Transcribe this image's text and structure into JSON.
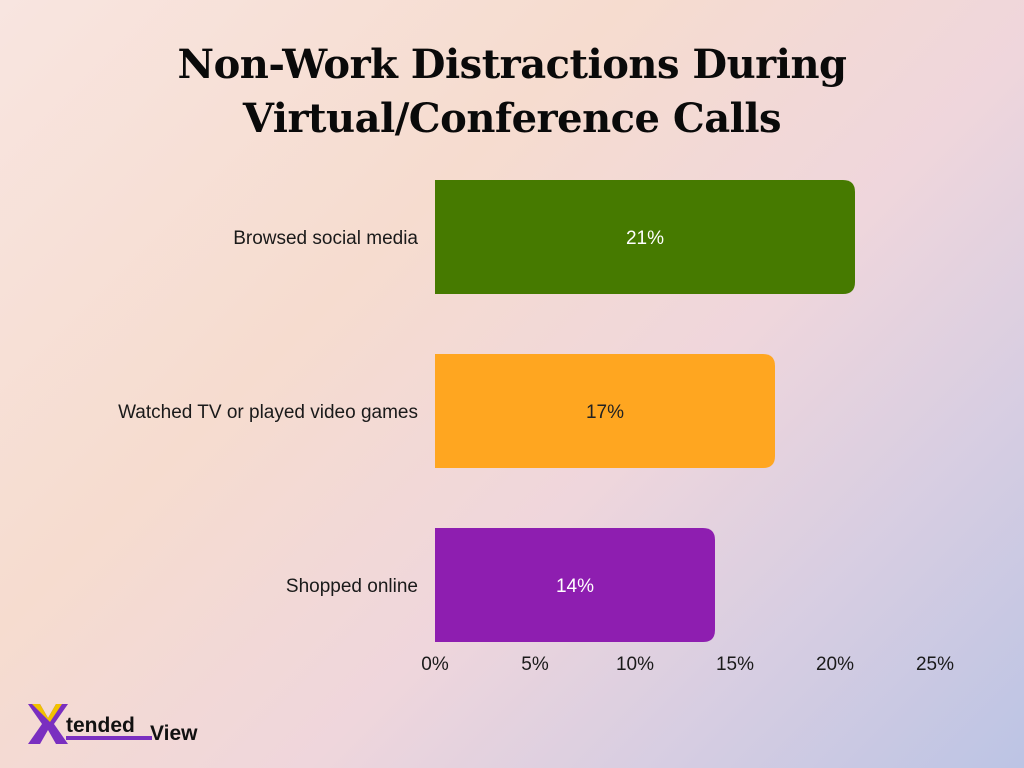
{
  "title_lines": [
    "Non-Work Distractions During",
    "Virtual/Conference Calls"
  ],
  "brand": {
    "mark": "X",
    "part1": "tended",
    "part2": "View",
    "accent": "#8a35c9",
    "yellow": "#f2c200"
  },
  "chart_data": {
    "type": "bar",
    "orientation": "horizontal",
    "categories": [
      "Browsed social media",
      "Watched TV or played video games",
      "Shopped online"
    ],
    "values": [
      21,
      17,
      14
    ],
    "data_labels": [
      "21%",
      "17%",
      "14%"
    ],
    "colors": [
      "#467a00",
      "#ffa620",
      "#8e1eb0"
    ],
    "label_colors": [
      "#ffffff",
      "#222222",
      "#ffffff"
    ],
    "xlim": [
      0,
      25
    ],
    "xticks": [
      0,
      5,
      10,
      15,
      20,
      25
    ],
    "xtick_labels": [
      "0%",
      "5%",
      "10%",
      "15%",
      "20%",
      "25%"
    ],
    "grid": false,
    "title": "Non-Work Distractions During Virtual/Conference Calls"
  }
}
